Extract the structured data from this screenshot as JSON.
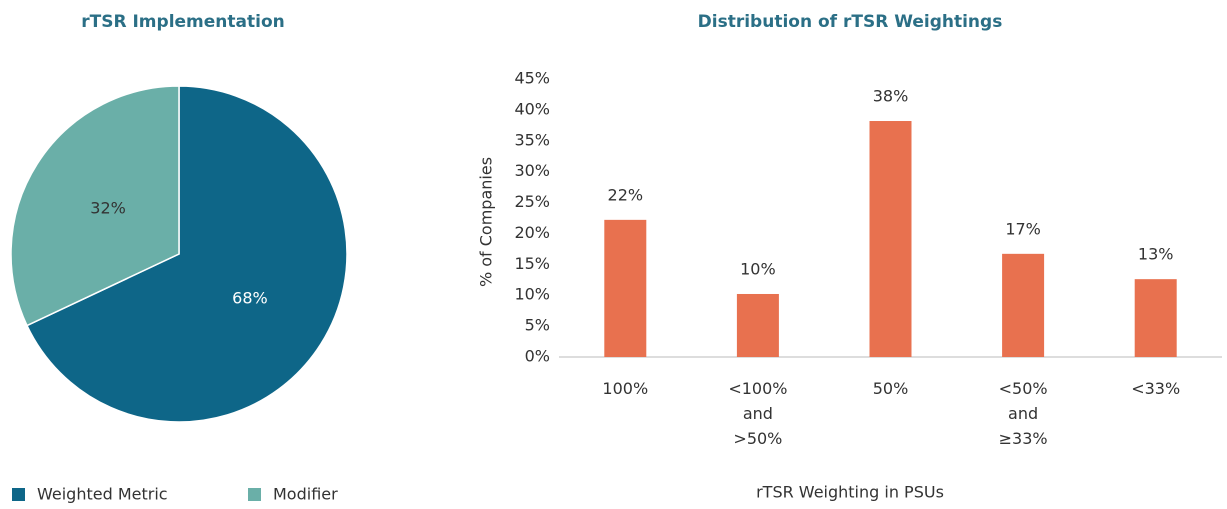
{
  "chart_data": [
    {
      "type": "pie",
      "title": "rTSR Implementation",
      "categories": [
        "Weighted Metric",
        "Modifier"
      ],
      "values": [
        68,
        32
      ],
      "value_labels": [
        "68%",
        "32%"
      ],
      "colors": [
        "#0e6688",
        "#6aafa8"
      ],
      "legend": "bottom"
    },
    {
      "type": "bar",
      "title": "Distribution of rTSR Weightings",
      "categories": [
        "100%",
        "<100% and >50%",
        "50%",
        "<50% and ≥33%",
        "<33%"
      ],
      "values": [
        22.2,
        10.2,
        38.2,
        16.7,
        12.6
      ],
      "value_labels": [
        "22%",
        "10%",
        "38%",
        "17%",
        "13%"
      ],
      "color": "#e8714f",
      "ylim": [
        0,
        45
      ],
      "yticks": [
        {
          "value": 0,
          "label": "0%"
        },
        {
          "value": 5,
          "label": "5%"
        },
        {
          "value": 10,
          "label": "10%"
        },
        {
          "value": 15,
          "label": "15%"
        },
        {
          "value": 20,
          "label": "20%"
        },
        {
          "value": 25,
          "label": "25%"
        },
        {
          "value": 30,
          "label": "30%"
        },
        {
          "value": 35,
          "label": "35%"
        },
        {
          "value": 40,
          "label": "40%"
        },
        {
          "value": 45,
          "label": "45%"
        }
      ],
      "y_label": "% of Companies",
      "x_label": "rTSR Weighting in PSUs",
      "grid": false
    }
  ]
}
